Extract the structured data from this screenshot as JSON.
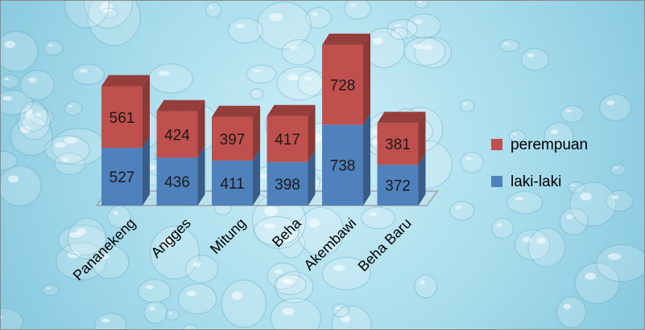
{
  "chart_data": {
    "type": "bar",
    "stacked": true,
    "three_d": true,
    "categories": [
      "Pananekeng",
      "Angges",
      "Mitung",
      "Beha",
      "Akembawi",
      "Beha Baru"
    ],
    "series": [
      {
        "name": "laki-laki",
        "values": [
          527,
          436,
          411,
          398,
          738,
          372
        ],
        "color": "#4f81bd"
      },
      {
        "name": "perempuan",
        "values": [
          561,
          424,
          397,
          417,
          728,
          381
        ],
        "color": "#c0504d"
      }
    ],
    "legend_position": "right",
    "legend_order": [
      "perempuan",
      "laki-laki"
    ],
    "grid": false
  }
}
